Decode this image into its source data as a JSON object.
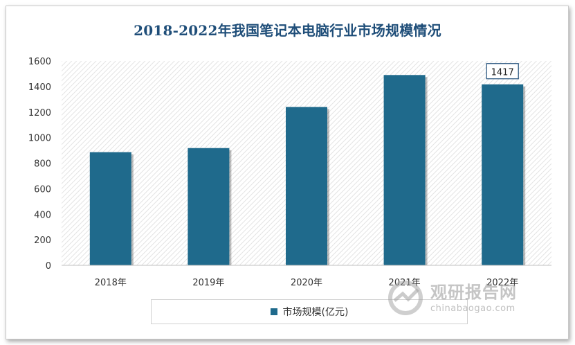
{
  "chart_data": {
    "type": "bar",
    "title": "2018-2022年我国笔记本电脑行业市场规模情况",
    "categories": [
      "2018年",
      "2019年",
      "2020年",
      "2021年",
      "2022年"
    ],
    "series": [
      {
        "name": "市场规模(亿元)",
        "values": [
          886,
          918,
          1240,
          1490,
          1417
        ]
      }
    ],
    "data_labels": [
      null,
      null,
      null,
      null,
      "1417"
    ],
    "ylim": [
      0,
      1600
    ],
    "yticks": [
      "0",
      "200",
      "400",
      "600",
      "800",
      "1000",
      "1200",
      "1400",
      "1600"
    ],
    "grid": false,
    "legend_position": "bottom",
    "bar_color": "#1f6a8c"
  },
  "watermark": {
    "cn": "观研报告网",
    "url": "chinabaogao.com"
  }
}
